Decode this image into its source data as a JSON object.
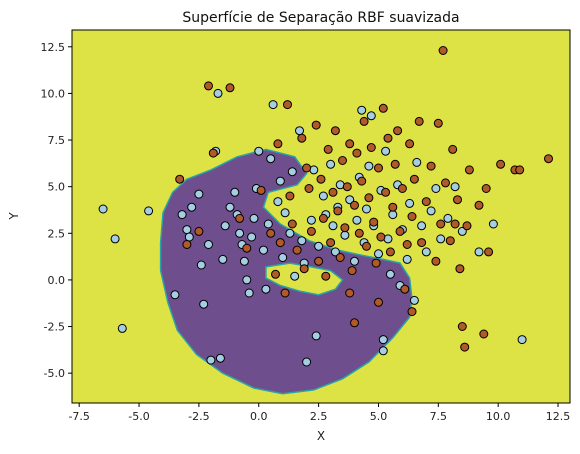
{
  "chart_data": {
    "type": "scatter",
    "title": "Superfície de Separação RBF suavizada",
    "xlabel": "X",
    "ylabel": "Y",
    "xlim": [
      -7.8,
      13.0
    ],
    "ylim": [
      -6.6,
      13.4
    ],
    "xticks": [
      -7.5,
      -5.0,
      -2.5,
      0.0,
      2.5,
      5.0,
      7.5,
      10.0,
      12.5
    ],
    "yticks": [
      -5.0,
      -2.5,
      0.0,
      2.5,
      5.0,
      7.5,
      10.0,
      12.5
    ],
    "grid": false,
    "background_region": {
      "color": "#dde344",
      "region_color": "#6e4e8c",
      "region_outline": "#2aa4a8",
      "region_polygon": [
        [
          -3.0,
          5.4
        ],
        [
          -2.0,
          5.9
        ],
        [
          -0.9,
          6.6
        ],
        [
          0.3,
          7.0
        ],
        [
          1.5,
          6.6
        ],
        [
          2.0,
          5.7
        ],
        [
          1.6,
          5.1
        ],
        [
          0.4,
          4.7
        ],
        [
          0.2,
          3.9
        ],
        [
          0.9,
          3.0
        ],
        [
          2.1,
          2.1
        ],
        [
          3.3,
          1.6
        ],
        [
          4.4,
          1.3
        ],
        [
          5.2,
          1.1
        ],
        [
          5.9,
          0.9
        ],
        [
          6.3,
          0.1
        ],
        [
          6.4,
          -1.0
        ],
        [
          6.3,
          -2.0
        ],
        [
          5.6,
          -3.1
        ],
        [
          4.6,
          -4.4
        ],
        [
          3.5,
          -5.3
        ],
        [
          2.3,
          -5.9
        ],
        [
          1.0,
          -6.1
        ],
        [
          -0.2,
          -5.8
        ],
        [
          -1.5,
          -5.0
        ],
        [
          -2.6,
          -4.0
        ],
        [
          -3.4,
          -2.7
        ],
        [
          -3.8,
          -1.2
        ],
        [
          -4.1,
          0.5
        ],
        [
          -4.1,
          2.0
        ],
        [
          -4.0,
          3.6
        ],
        [
          -3.6,
          4.7
        ]
      ],
      "hole_polygon": [
        [
          0.3,
          0.7
        ],
        [
          1.3,
          0.9
        ],
        [
          2.2,
          0.7
        ],
        [
          3.0,
          0.5
        ],
        [
          3.5,
          0.0
        ],
        [
          3.2,
          -0.5
        ],
        [
          2.5,
          -0.8
        ],
        [
          1.7,
          -0.6
        ],
        [
          0.9,
          -0.3
        ],
        [
          0.3,
          0.1
        ]
      ]
    },
    "series": [
      {
        "color": "#a6cee3",
        "points": [
          [
            -6.5,
            3.8
          ],
          [
            -6.0,
            2.2
          ],
          [
            -5.7,
            -2.6
          ],
          [
            -4.6,
            3.7
          ],
          [
            -3.5,
            -0.8
          ],
          [
            -3.2,
            3.5
          ],
          [
            -3.0,
            2.7
          ],
          [
            -2.9,
            2.3
          ],
          [
            -2.8,
            3.9
          ],
          [
            -2.5,
            4.6
          ],
          [
            -2.4,
            0.8
          ],
          [
            -2.3,
            -1.3
          ],
          [
            -2.1,
            1.9
          ],
          [
            -2.0,
            -4.3
          ],
          [
            -1.8,
            6.9
          ],
          [
            -1.7,
            10.0
          ],
          [
            -1.6,
            -4.2
          ],
          [
            -1.5,
            1.1
          ],
          [
            -1.4,
            2.9
          ],
          [
            -1.2,
            3.9
          ],
          [
            -1.0,
            4.7
          ],
          [
            -0.9,
            3.5
          ],
          [
            -0.8,
            2.5
          ],
          [
            -0.7,
            1.9
          ],
          [
            -0.6,
            1.0
          ],
          [
            -0.5,
            0.0
          ],
          [
            -0.4,
            -0.7
          ],
          [
            -0.3,
            2.3
          ],
          [
            -0.2,
            3.3
          ],
          [
            -0.1,
            4.9
          ],
          [
            0.0,
            6.9
          ],
          [
            0.2,
            1.6
          ],
          [
            0.3,
            -0.5
          ],
          [
            0.4,
            3.0
          ],
          [
            0.5,
            6.5
          ],
          [
            0.6,
            9.4
          ],
          [
            0.8,
            4.2
          ],
          [
            0.9,
            5.3
          ],
          [
            1.0,
            1.2
          ],
          [
            1.1,
            3.6
          ],
          [
            1.3,
            2.5
          ],
          [
            1.4,
            5.8
          ],
          [
            1.5,
            0.2
          ],
          [
            1.7,
            8.0
          ],
          [
            1.8,
            2.1
          ],
          [
            1.9,
            0.9
          ],
          [
            2.0,
            -4.4
          ],
          [
            2.2,
            3.2
          ],
          [
            2.3,
            5.9
          ],
          [
            2.4,
            -3.0
          ],
          [
            2.5,
            1.8
          ],
          [
            2.7,
            4.5
          ],
          [
            2.8,
            3.5
          ],
          [
            3.0,
            6.2
          ],
          [
            3.1,
            2.9
          ],
          [
            3.2,
            1.5
          ],
          [
            3.3,
            3.9
          ],
          [
            3.4,
            5.1
          ],
          [
            3.6,
            2.4
          ],
          [
            3.8,
            4.3
          ],
          [
            4.0,
            1.0
          ],
          [
            4.1,
            3.2
          ],
          [
            4.2,
            5.5
          ],
          [
            4.3,
            9.1
          ],
          [
            4.4,
            2.0
          ],
          [
            4.5,
            3.8
          ],
          [
            4.6,
            6.1
          ],
          [
            4.7,
            8.8
          ],
          [
            4.8,
            2.9
          ],
          [
            5.0,
            1.4
          ],
          [
            5.1,
            4.8
          ],
          [
            5.2,
            -3.2
          ],
          [
            5.3,
            6.9
          ],
          [
            5.4,
            2.2
          ],
          [
            5.5,
            0.3
          ],
          [
            5.6,
            3.5
          ],
          [
            5.8,
            5.1
          ],
          [
            5.9,
            -0.3
          ],
          [
            6.0,
            2.7
          ],
          [
            6.2,
            1.1
          ],
          [
            6.3,
            4.1
          ],
          [
            6.5,
            -1.1
          ],
          [
            6.6,
            6.3
          ],
          [
            6.8,
            2.9
          ],
          [
            7.0,
            1.5
          ],
          [
            7.2,
            3.7
          ],
          [
            7.4,
            4.9
          ],
          [
            7.6,
            2.2
          ],
          [
            7.9,
            3.3
          ],
          [
            8.2,
            5.0
          ],
          [
            8.5,
            2.6
          ],
          [
            9.2,
            1.5
          ],
          [
            9.8,
            3.0
          ],
          [
            11.0,
            -3.2
          ],
          [
            5.2,
            -3.8
          ]
        ]
      },
      {
        "color": "#b15928",
        "points": [
          [
            -3.3,
            5.4
          ],
          [
            -3.0,
            1.9
          ],
          [
            -2.5,
            2.6
          ],
          [
            -2.1,
            10.4
          ],
          [
            -1.9,
            6.8
          ],
          [
            -1.2,
            10.3
          ],
          [
            -0.8,
            3.3
          ],
          [
            -0.5,
            1.7
          ],
          [
            0.1,
            4.8
          ],
          [
            0.5,
            2.5
          ],
          [
            0.7,
            0.3
          ],
          [
            0.8,
            7.3
          ],
          [
            0.9,
            2.0
          ],
          [
            1.1,
            -0.7
          ],
          [
            1.2,
            9.4
          ],
          [
            1.3,
            4.5
          ],
          [
            1.4,
            3.0
          ],
          [
            1.6,
            1.6
          ],
          [
            1.8,
            7.6
          ],
          [
            1.9,
            0.6
          ],
          [
            2.0,
            6.0
          ],
          [
            2.1,
            4.9
          ],
          [
            2.2,
            2.6
          ],
          [
            2.4,
            8.3
          ],
          [
            2.5,
            1.0
          ],
          [
            2.6,
            5.4
          ],
          [
            2.7,
            3.3
          ],
          [
            2.8,
            0.2
          ],
          [
            2.9,
            7.0
          ],
          [
            3.0,
            2.0
          ],
          [
            3.1,
            4.7
          ],
          [
            3.2,
            8.0
          ],
          [
            3.3,
            3.7
          ],
          [
            3.4,
            1.2
          ],
          [
            3.5,
            6.4
          ],
          [
            3.6,
            2.8
          ],
          [
            3.7,
            5.0
          ],
          [
            3.8,
            7.3
          ],
          [
            3.9,
            0.5
          ],
          [
            4.0,
            4.0
          ],
          [
            4.1,
            6.8
          ],
          [
            4.2,
            2.5
          ],
          [
            4.3,
            5.3
          ],
          [
            4.4,
            8.5
          ],
          [
            4.5,
            1.8
          ],
          [
            4.6,
            4.4
          ],
          [
            4.7,
            7.1
          ],
          [
            4.8,
            3.1
          ],
          [
            4.9,
            0.9
          ],
          [
            5.0,
            6.0
          ],
          [
            5.1,
            2.3
          ],
          [
            5.2,
            9.2
          ],
          [
            5.3,
            4.7
          ],
          [
            5.4,
            7.6
          ],
          [
            5.5,
            1.5
          ],
          [
            5.6,
            3.9
          ],
          [
            5.7,
            6.2
          ],
          [
            5.8,
            8.0
          ],
          [
            5.9,
            2.6
          ],
          [
            6.0,
            4.9
          ],
          [
            6.1,
            -0.5
          ],
          [
            6.2,
            1.9
          ],
          [
            6.3,
            7.3
          ],
          [
            6.4,
            3.4
          ],
          [
            6.5,
            5.4
          ],
          [
            6.7,
            8.5
          ],
          [
            6.8,
            2.0
          ],
          [
            7.0,
            4.2
          ],
          [
            7.2,
            6.1
          ],
          [
            7.4,
            1.0
          ],
          [
            7.5,
            8.4
          ],
          [
            7.6,
            3.0
          ],
          [
            7.7,
            12.3
          ],
          [
            7.8,
            5.2
          ],
          [
            8.0,
            2.1
          ],
          [
            8.1,
            7.0
          ],
          [
            8.3,
            4.3
          ],
          [
            8.4,
            0.6
          ],
          [
            8.5,
            -2.5
          ],
          [
            8.6,
            -3.6
          ],
          [
            8.7,
            2.9
          ],
          [
            8.8,
            5.9
          ],
          [
            9.2,
            4.0
          ],
          [
            9.4,
            -2.9
          ],
          [
            9.5,
            4.9
          ],
          [
            9.6,
            1.5
          ],
          [
            10.1,
            6.2
          ],
          [
            10.7,
            5.9
          ],
          [
            12.1,
            6.5
          ],
          [
            10.9,
            5.9
          ],
          [
            6.4,
            -1.7
          ],
          [
            5.0,
            -1.2
          ],
          [
            3.8,
            -0.7
          ],
          [
            4.0,
            -2.3
          ],
          [
            8.2,
            3.0
          ]
        ]
      }
    ]
  }
}
